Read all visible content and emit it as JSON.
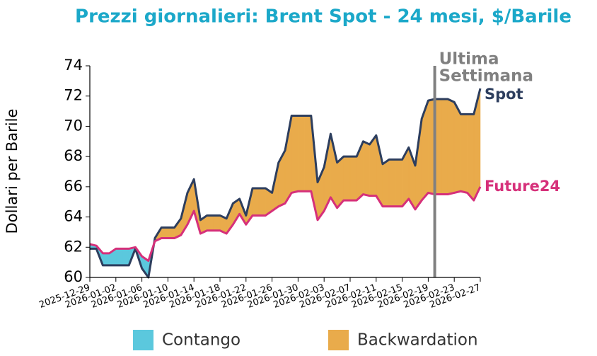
{
  "chart_data": {
    "type": "line",
    "title": "Prezzi giornalieri: Brent Spot - 24 mesi, $/Barile",
    "y_label": "Dollari per Barile",
    "x": [
      "2025-12-29",
      "2025-12-30",
      "2025-12-31",
      "2026-01-01",
      "2026-01-02",
      "2026-01-03",
      "2026-01-04",
      "2026-01-05",
      "2026-01-06",
      "2026-01-07",
      "2026-01-08",
      "2026-01-09",
      "2026-01-10",
      "2026-01-11",
      "2026-01-12",
      "2026-01-13",
      "2026-01-14",
      "2026-01-15",
      "2026-01-16",
      "2026-01-17",
      "2026-01-18",
      "2026-01-19",
      "2026-01-20",
      "2026-01-21",
      "2026-01-22",
      "2026-01-23",
      "2026-01-24",
      "2026-01-25",
      "2026-01-26",
      "2026-01-27",
      "2026-01-28",
      "2026-01-29",
      "2026-01-30",
      "2026-01-31",
      "2026-02-01",
      "2026-02-02",
      "2026-02-03",
      "2026-02-04",
      "2026-02-05",
      "2026-02-06",
      "2026-02-07",
      "2026-02-08",
      "2026-02-09",
      "2026-02-10",
      "2026-02-11",
      "2026-02-12",
      "2026-02-13",
      "2026-02-14",
      "2026-02-15",
      "2026-02-16",
      "2026-02-17",
      "2026-02-18",
      "2026-02-19",
      "2026-02-20",
      "2026-02-21",
      "2026-02-22",
      "2026-02-23",
      "2026-02-24",
      "2026-02-25",
      "2026-02-26",
      "2026-02-27"
    ],
    "series": [
      {
        "name": "Spot",
        "color": "#2d3e5e",
        "values": [
          61.9,
          61.9,
          60.8,
          60.8,
          60.8,
          60.8,
          60.8,
          61.9,
          60.6,
          60.0,
          62.6,
          63.3,
          63.3,
          63.3,
          63.9,
          65.6,
          66.5,
          63.8,
          64.1,
          64.1,
          64.1,
          63.9,
          64.9,
          65.2,
          64.1,
          65.9,
          65.9,
          65.9,
          65.6,
          67.6,
          68.4,
          70.7,
          70.7,
          70.7,
          70.7,
          66.3,
          67.3,
          69.5,
          67.6,
          68.0,
          68.0,
          68.0,
          69.0,
          68.8,
          69.4,
          67.5,
          67.8,
          67.8,
          67.8,
          68.6,
          67.4,
          70.5,
          71.7,
          71.8,
          71.8,
          71.8,
          71.6,
          70.8,
          70.8,
          70.8,
          72.5
        ]
      },
      {
        "name": "Future24",
        "color": "#d6307a",
        "values": [
          62.2,
          62.1,
          61.6,
          61.6,
          61.9,
          61.9,
          61.9,
          62.0,
          61.4,
          61.1,
          62.4,
          62.6,
          62.6,
          62.6,
          62.8,
          63.5,
          64.4,
          62.9,
          63.1,
          63.1,
          63.1,
          62.9,
          63.5,
          64.2,
          63.5,
          64.1,
          64.1,
          64.1,
          64.4,
          64.7,
          64.9,
          65.6,
          65.7,
          65.7,
          65.7,
          63.8,
          64.4,
          65.3,
          64.6,
          65.1,
          65.1,
          65.1,
          65.5,
          65.4,
          65.4,
          64.7,
          64.7,
          64.7,
          64.7,
          65.2,
          64.5,
          65.1,
          65.6,
          65.5,
          65.5,
          65.5,
          65.6,
          65.7,
          65.6,
          65.1,
          66.0
        ]
      }
    ],
    "fills": [
      {
        "name": "Contango",
        "color": "#5bc8dd"
      },
      {
        "name": "Backwardation",
        "color": "#e9ab4b"
      }
    ],
    "annotation": {
      "x": "2026-02-20",
      "lines": [
        "Ultima",
        "Settimana"
      ],
      "color": "#808080"
    },
    "xlim": [
      "2025-12-29",
      "2026-02-27"
    ],
    "xticks": [
      "2025-12-29",
      "2026-01-02",
      "2026-01-06",
      "2026-01-10",
      "2026-01-14",
      "2026-01-18",
      "2026-01-22",
      "2026-01-26",
      "2026-01-30",
      "2026-02-03",
      "2026-02-07",
      "2026-02-11",
      "2026-02-15",
      "2026-02-19",
      "2026-02-23",
      "2026-02-27"
    ],
    "ylim": [
      60,
      74
    ],
    "yticks": [
      60,
      62,
      64,
      66,
      68,
      70,
      72,
      74
    ],
    "grid": false
  }
}
